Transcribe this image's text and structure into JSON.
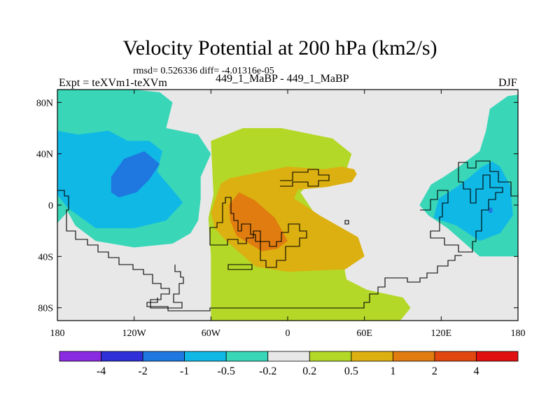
{
  "header": {
    "title": "Velocity Potential at 200 hPa (km2/s)",
    "stats": "rmsd= 0.526336 diff= -4.01316e-05",
    "expt": "Expt = teXVm1-teXVm",
    "cases": "449_1_MaBP - 449_1_MaBP",
    "season": "DJF"
  },
  "colors": {
    "background": "#e8e8e8",
    "frame": "#000000"
  },
  "chart_data": {
    "type": "heatmap",
    "title": "Velocity Potential at 200 hPa (km2/s)",
    "projection": "cylindrical equidistant",
    "xlim": [
      -180,
      180
    ],
    "ylim": [
      -90,
      90
    ],
    "x_ticks": [
      {
        "value": -180,
        "label": "180"
      },
      {
        "value": -120,
        "label": "120W"
      },
      {
        "value": -60,
        "label": "60W"
      },
      {
        "value": 0,
        "label": "0"
      },
      {
        "value": 60,
        "label": "60E"
      },
      {
        "value": 120,
        "label": "120E"
      },
      {
        "value": 180,
        "label": "180"
      }
    ],
    "y_ticks": [
      {
        "value": 80,
        "label": "80N"
      },
      {
        "value": 40,
        "label": "40N"
      },
      {
        "value": 0,
        "label": "0"
      },
      {
        "value": -40,
        "label": "40S"
      },
      {
        "value": -80,
        "label": "80S"
      }
    ],
    "colorbar": {
      "labels": [
        "-4",
        "-2",
        "-1",
        "-0.5",
        "-0.2",
        "0.2",
        "0.5",
        "1",
        "2",
        "4"
      ],
      "colors": [
        "#8a2be2",
        "#3030d8",
        "#1e78e0",
        "#10b8e6",
        "#3ad6b8",
        "#e8e8e8",
        "#b4d828",
        "#dcb010",
        "#e07c10",
        "#e04810",
        "#e01010"
      ]
    },
    "regions": [
      {
        "label": "-0.2",
        "color": "#3ad6b8",
        "points": [
          [
            -180,
            90
          ],
          [
            -120,
            90
          ],
          [
            -100,
            88
          ],
          [
            -90,
            80
          ],
          [
            -95,
            60
          ],
          [
            -70,
            55
          ],
          [
            -60,
            40
          ],
          [
            -68,
            22
          ],
          [
            -68,
            5
          ],
          [
            -70,
            -12
          ],
          [
            -76,
            -22
          ],
          [
            -90,
            -30
          ],
          [
            -120,
            -33
          ],
          [
            -150,
            -28
          ],
          [
            -166,
            -16
          ],
          [
            -172,
            -5
          ],
          [
            -180,
            -14
          ]
        ]
      },
      {
        "label": "-0.5",
        "color": "#10b8e6",
        "points": [
          [
            -180,
            58
          ],
          [
            -164,
            55
          ],
          [
            -140,
            58
          ],
          [
            -125,
            50
          ],
          [
            -108,
            50
          ],
          [
            -98,
            42
          ],
          [
            -102,
            26
          ],
          [
            -90,
            12
          ],
          [
            -82,
            2
          ],
          [
            -95,
            -12
          ],
          [
            -120,
            -18
          ],
          [
            -150,
            -18
          ],
          [
            -172,
            -2
          ],
          [
            -180,
            8
          ]
        ]
      },
      {
        "label": "-1",
        "color": "#1e78e0",
        "points": [
          [
            -138,
            22
          ],
          [
            -128,
            36
          ],
          [
            -112,
            42
          ],
          [
            -100,
            32
          ],
          [
            -108,
            20
          ],
          [
            -118,
            10
          ],
          [
            -132,
            6
          ],
          [
            -138,
            10
          ]
        ]
      },
      {
        "label": "0.2",
        "color": "#b4d828",
        "points": [
          [
            -60,
            50
          ],
          [
            -35,
            60
          ],
          [
            -5,
            60
          ],
          [
            35,
            52
          ],
          [
            50,
            40
          ],
          [
            45,
            25
          ],
          [
            20,
            20
          ],
          [
            10,
            10
          ],
          [
            20,
            -5
          ],
          [
            32,
            -18
          ],
          [
            42,
            -38
          ],
          [
            46,
            -58
          ],
          [
            62,
            -66
          ],
          [
            90,
            -72
          ],
          [
            96,
            -80
          ],
          [
            88,
            -90
          ],
          [
            -60,
            -90
          ],
          [
            -60,
            -40
          ],
          [
            -62,
            -10
          ],
          [
            -58,
            8
          ]
        ]
      },
      {
        "label": "0.5",
        "color": "#dcb010",
        "points": [
          [
            -52,
            17
          ],
          [
            -45,
            21
          ],
          [
            0,
            30
          ],
          [
            28,
            28
          ],
          [
            42,
            30
          ],
          [
            52,
            28
          ],
          [
            54,
            24
          ],
          [
            50,
            18
          ],
          [
            30,
            14
          ],
          [
            8,
            12
          ],
          [
            5,
            5
          ],
          [
            10,
            2
          ],
          [
            25,
            -8
          ],
          [
            55,
            -25
          ],
          [
            60,
            -40
          ],
          [
            45,
            -50
          ],
          [
            0,
            -52
          ],
          [
            -25,
            -48
          ],
          [
            -48,
            -28
          ],
          [
            -57,
            -18
          ],
          [
            -60,
            -6
          ],
          [
            -56,
            6
          ]
        ]
      },
      {
        "label": "1",
        "color": "#e07c10",
        "points": [
          [
            -42,
            5
          ],
          [
            -38,
            10
          ],
          [
            -26,
            4
          ],
          [
            -10,
            -10
          ],
          [
            0,
            -28
          ],
          [
            -8,
            -34
          ],
          [
            -20,
            -36
          ],
          [
            -40,
            -24
          ],
          [
            -45,
            -12
          ],
          [
            -46,
            0
          ]
        ]
      },
      {
        "label": "-0.2",
        "color": "#3ad6b8",
        "points": [
          [
            180,
            -40
          ],
          [
            168,
            -40
          ],
          [
            150,
            -40
          ],
          [
            125,
            -18
          ],
          [
            110,
            -8
          ],
          [
            103,
            0
          ],
          [
            112,
            16
          ],
          [
            122,
            22
          ],
          [
            134,
            30
          ],
          [
            150,
            42
          ],
          [
            155,
            58
          ],
          [
            158,
            75
          ],
          [
            172,
            85
          ],
          [
            180,
            86
          ]
        ]
      },
      {
        "label": "-0.5",
        "color": "#10b8e6",
        "points": [
          [
            140,
            20
          ],
          [
            132,
            14
          ],
          [
            118,
            5
          ],
          [
            114,
            -10
          ],
          [
            132,
            -16
          ],
          [
            150,
            -28
          ],
          [
            166,
            -22
          ],
          [
            176,
            -8
          ],
          [
            174,
            15
          ],
          [
            166,
            30
          ],
          [
            160,
            34
          ],
          [
            152,
            30
          ]
        ]
      },
      {
        "label": "-1",
        "color": "#1e78e0",
        "points": [
          [
            157,
            -2
          ],
          [
            160,
            -2
          ],
          [
            160,
            -6
          ],
          [
            157,
            -6
          ]
        ]
      }
    ]
  }
}
